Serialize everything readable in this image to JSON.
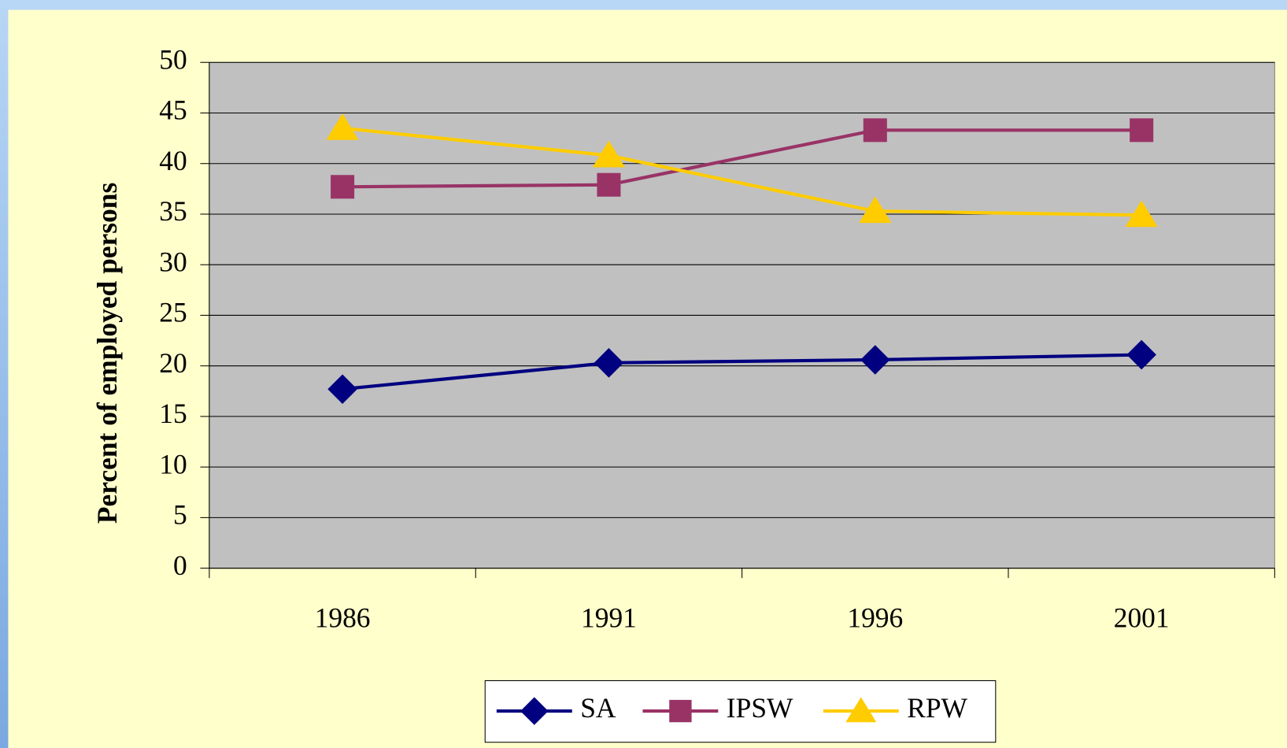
{
  "chart_data": {
    "type": "line",
    "y_label": "Percent of employed persons",
    "categories": [
      "1986",
      "1991",
      "1996",
      "2001"
    ],
    "series": [
      {
        "name": "SA",
        "color": "#000080",
        "marker": "diamond",
        "values": [
          17.7,
          20.3,
          20.6,
          21.1
        ]
      },
      {
        "name": "IPSW",
        "color": "#993366",
        "marker": "square",
        "values": [
          37.7,
          37.9,
          43.3,
          43.3
        ]
      },
      {
        "name": "RPW",
        "color": "#ffcc00",
        "marker": "triangle",
        "values": [
          43.5,
          40.8,
          35.3,
          34.9
        ]
      }
    ],
    "ylim": [
      0,
      50
    ],
    "yticks": [
      0,
      5,
      10,
      15,
      20,
      25,
      30,
      35,
      40,
      45,
      50
    ],
    "grid": true,
    "legend": "bottom"
  }
}
